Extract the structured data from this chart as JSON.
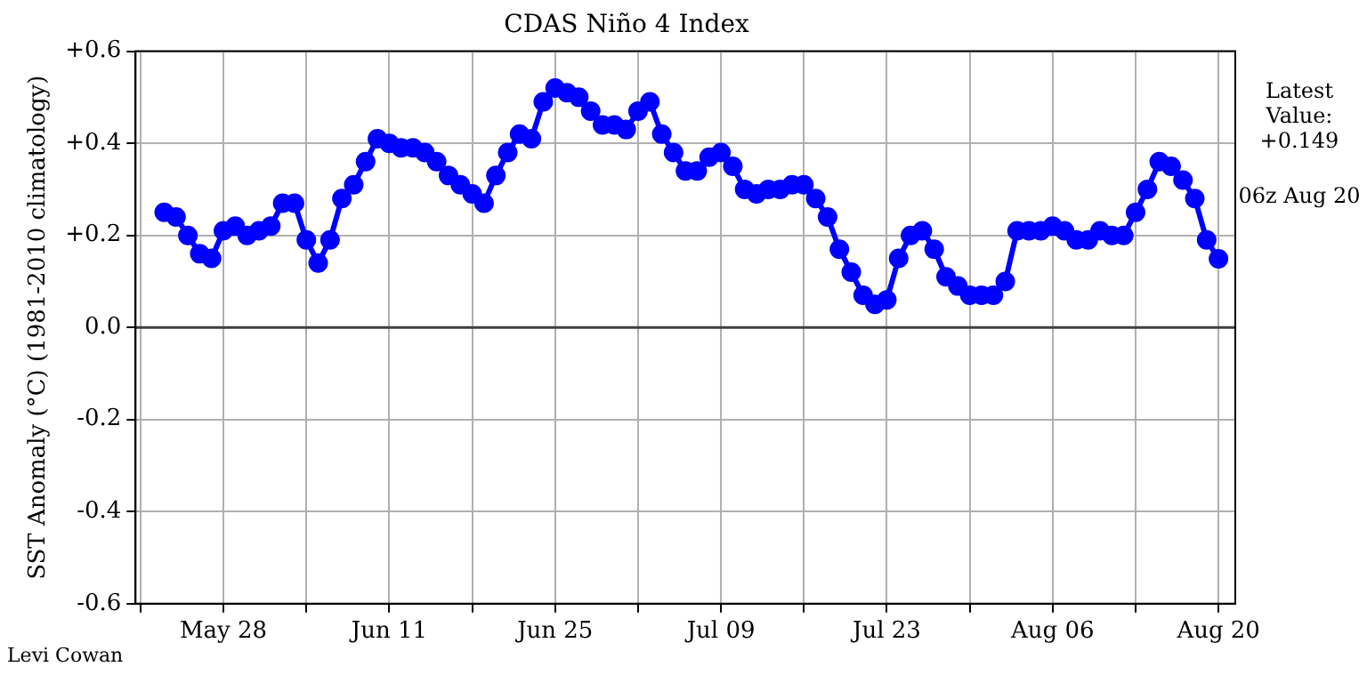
{
  "chart_data": {
    "type": "line",
    "title": "CDAS Niño 4 Index",
    "ylabel": "SST Anomaly (°C) (1981-2010 climatology)",
    "x": [
      "--05-23",
      "--05-24",
      "--05-25",
      "--05-26",
      "--05-27",
      "--05-28",
      "--05-29",
      "--05-30",
      "--05-31",
      "--06-01",
      "--06-02",
      "--06-03",
      "--06-04",
      "--06-05",
      "--06-06",
      "--06-07",
      "--06-08",
      "--06-09",
      "--06-10",
      "--06-11",
      "--06-12",
      "--06-13",
      "--06-14",
      "--06-15",
      "--06-16",
      "--06-17",
      "--06-18",
      "--06-19",
      "--06-20",
      "--06-21",
      "--06-22",
      "--06-23",
      "--06-24",
      "--06-25",
      "--06-26",
      "--06-27",
      "--06-28",
      "--06-29",
      "--06-30",
      "--07-01",
      "--07-02",
      "--07-03",
      "--07-04",
      "--07-05",
      "--07-06",
      "--07-07",
      "--07-08",
      "--07-09",
      "--07-10",
      "--07-11",
      "--07-12",
      "--07-13",
      "--07-14",
      "--07-15",
      "--07-16",
      "--07-17",
      "--07-18",
      "--07-19",
      "--07-20",
      "--07-21",
      "--07-22",
      "--07-23",
      "--07-24",
      "--07-25",
      "--07-26",
      "--07-27",
      "--07-28",
      "--07-29",
      "--07-30",
      "--07-31",
      "--08-01",
      "--08-02",
      "--08-03",
      "--08-04",
      "--08-05",
      "--08-06",
      "--08-07",
      "--08-08",
      "--08-09",
      "--08-10",
      "--08-11",
      "--08-12",
      "--08-13",
      "--08-14",
      "--08-15",
      "--08-16",
      "--08-17",
      "--08-18",
      "--08-19",
      "--08-20"
    ],
    "series": [
      {
        "color": "#0000ff",
        "values": [
          0.25,
          0.24,
          0.2,
          0.16,
          0.15,
          0.21,
          0.22,
          0.2,
          0.21,
          0.22,
          0.27,
          0.27,
          0.19,
          0.14,
          0.19,
          0.28,
          0.31,
          0.36,
          0.41,
          0.4,
          0.39,
          0.39,
          0.38,
          0.36,
          0.33,
          0.31,
          0.29,
          0.27,
          0.33,
          0.38,
          0.42,
          0.41,
          0.49,
          0.52,
          0.51,
          0.5,
          0.47,
          0.44,
          0.44,
          0.43,
          0.47,
          0.49,
          0.42,
          0.38,
          0.34,
          0.34,
          0.37,
          0.38,
          0.35,
          0.3,
          0.29,
          0.3,
          0.3,
          0.31,
          0.31,
          0.28,
          0.24,
          0.17,
          0.12,
          0.07,
          0.05,
          0.06,
          0.15,
          0.2,
          0.21,
          0.17,
          0.11,
          0.09,
          0.07,
          0.07,
          0.07,
          0.1,
          0.21,
          0.21,
          0.21,
          0.22,
          0.21,
          0.19,
          0.19,
          0.21,
          0.2,
          0.2,
          0.25,
          0.3,
          0.36,
          0.35,
          0.32,
          0.28,
          0.19,
          0.149
        ]
      }
    ],
    "xlim": [
      "--05-20T14:00",
      "--08-21T10:00"
    ],
    "xticks": [
      {
        "value": "--05-21",
        "label": null
      },
      {
        "value": "--05-28",
        "label": "May 28"
      },
      {
        "value": "--06-04",
        "label": null
      },
      {
        "value": "--06-11",
        "label": "Jun 11"
      },
      {
        "value": "--06-18",
        "label": null
      },
      {
        "value": "--06-25",
        "label": "Jun 25"
      },
      {
        "value": "--07-02",
        "label": null
      },
      {
        "value": "--07-09",
        "label": "Jul 09"
      },
      {
        "value": "--07-16",
        "label": null
      },
      {
        "value": "--07-23",
        "label": "Jul 23"
      },
      {
        "value": "--07-30",
        "label": null
      },
      {
        "value": "--08-06",
        "label": "Aug 06"
      },
      {
        "value": "--08-13",
        "label": null
      },
      {
        "value": "--08-20",
        "label": "Aug 20"
      }
    ],
    "ylim": [
      -0.6,
      0.6
    ],
    "yticks": [
      {
        "value": -0.6,
        "label": "-0.6"
      },
      {
        "value": -0.4,
        "label": "-0.4"
      },
      {
        "value": -0.2,
        "label": "-0.2"
      },
      {
        "value": 0,
        "label": "0.0"
      },
      {
        "value": 0.2,
        "label": "+0.2"
      },
      {
        "value": 0.4,
        "label": "+0.4"
      },
      {
        "value": 0.6,
        "label": "+0.6"
      }
    ],
    "ref_lines": [
      {
        "axis": "y",
        "value": 0,
        "color": "#404040"
      }
    ],
    "grid": true,
    "legend": false,
    "marker": "circle",
    "line_style": "solid",
    "annotations": [
      "Latest Value: +0.149",
      "06z Aug 20",
      "Levi Cowan"
    ]
  }
}
